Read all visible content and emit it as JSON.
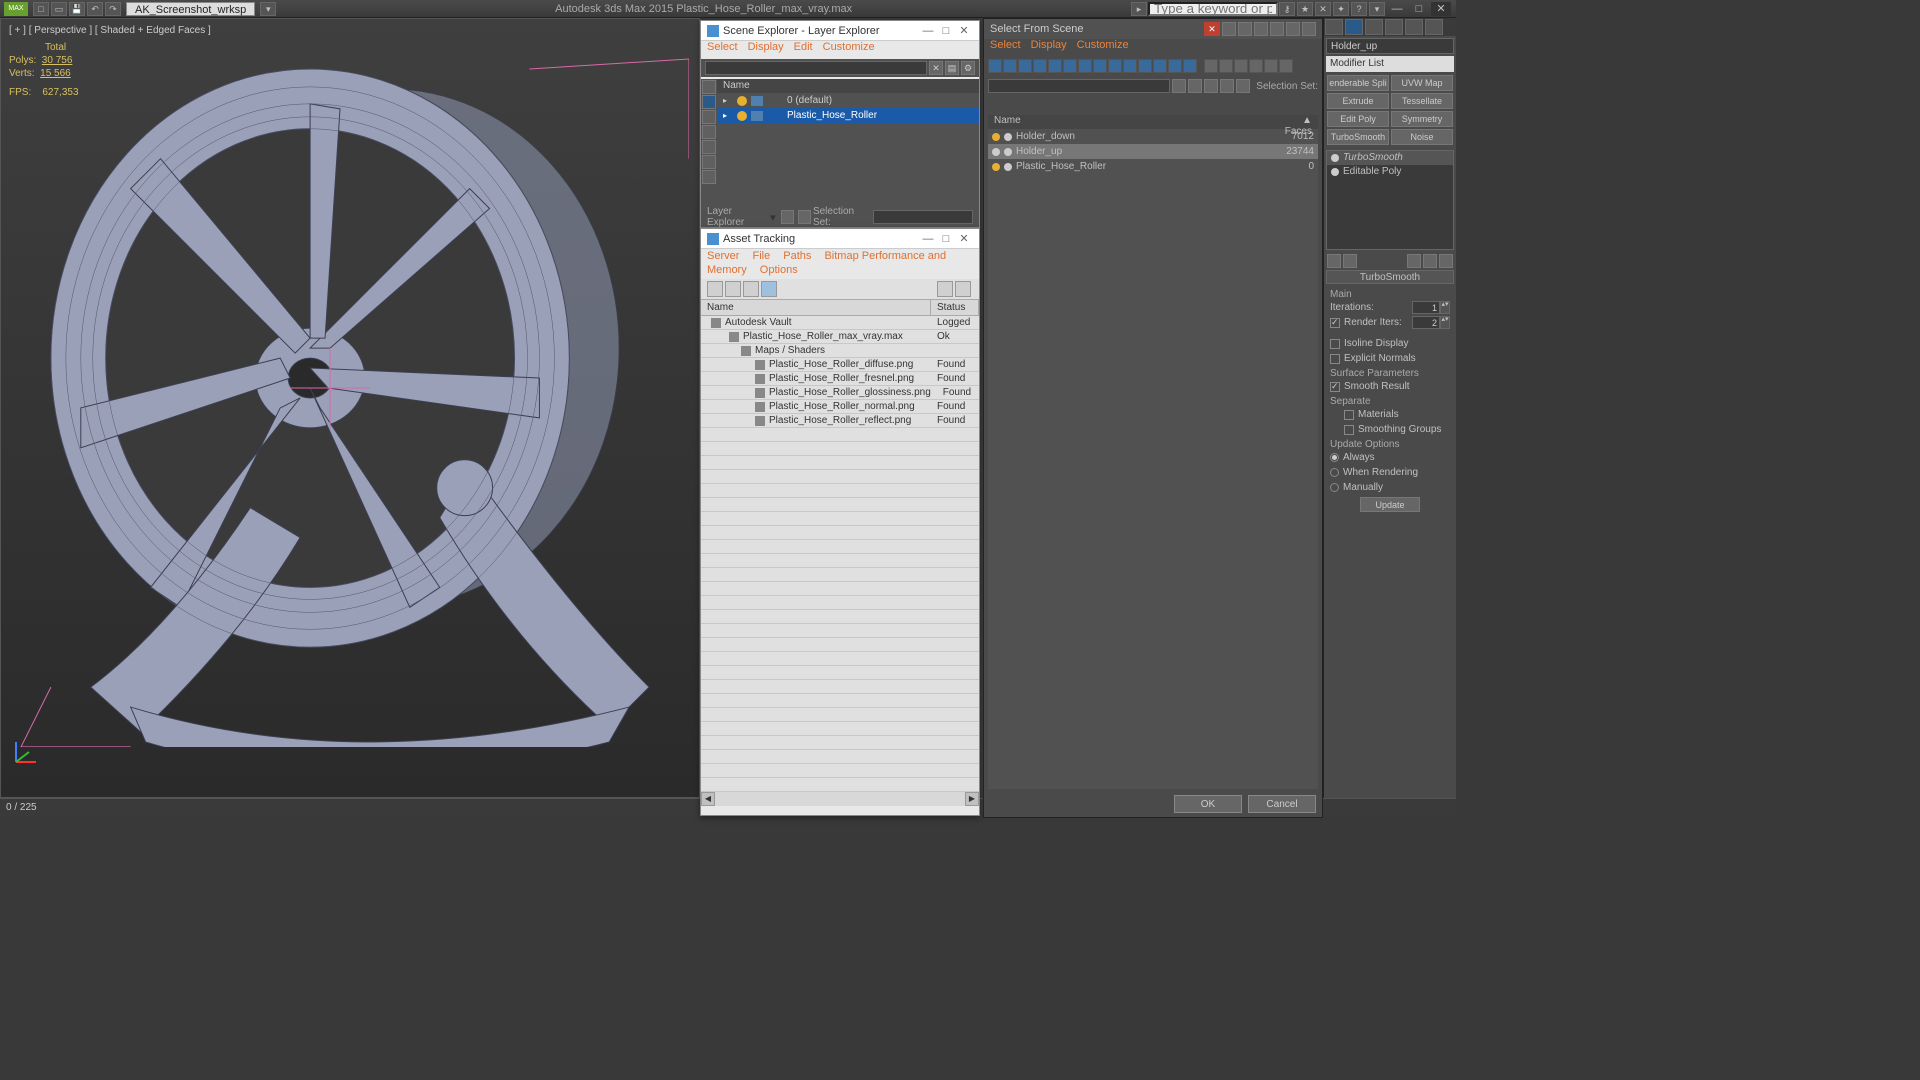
{
  "app": {
    "title": "Autodesk 3ds Max  2015    Plastic_Hose_Roller_max_vray.max",
    "workspace": "AK_Screenshot_wrksp",
    "search_placeholder": "Type a keyword or phrase"
  },
  "viewport": {
    "label": "[ + ] [ Perspective ] [ Shaded + Edged Faces ]",
    "stats_title": "Total",
    "polys_label": "Polys:",
    "polys": "30 756",
    "verts_label": "Verts:",
    "verts": "15 566",
    "fps_label": "FPS:",
    "fps": "627,353",
    "wire_color": "#9aa0b8",
    "wire_edge": "#3c3f52",
    "helper_color": "#d86aa8"
  },
  "statusbar": {
    "frames": "0 / 225"
  },
  "scene_explorer": {
    "title": "Scene Explorer - Layer Explorer",
    "menu": [
      "Select",
      "Display",
      "Edit",
      "Customize"
    ],
    "name_col": "Name",
    "layers": [
      {
        "name": "0 (default)",
        "selected": false,
        "indent": 20
      },
      {
        "name": "Plastic_Hose_Roller",
        "selected": true,
        "indent": 20
      }
    ],
    "footer_label": "Layer Explorer",
    "selset_label": "Selection Set:"
  },
  "asset_tracking": {
    "title": "Asset Tracking",
    "menu": [
      "Server",
      "File",
      "Paths",
      "Bitmap Performance and Memory",
      "Options"
    ],
    "cols": [
      "Name",
      "Status"
    ],
    "rows": [
      {
        "name": "Autodesk Vault",
        "status": "Logged",
        "indent": 10
      },
      {
        "name": "Plastic_Hose_Roller_max_vray.max",
        "status": "Ok",
        "indent": 28
      },
      {
        "name": "Maps / Shaders",
        "status": "",
        "indent": 40
      },
      {
        "name": "Plastic_Hose_Roller_diffuse.png",
        "status": "Found",
        "indent": 54
      },
      {
        "name": "Plastic_Hose_Roller_fresnel.png",
        "status": "Found",
        "indent": 54
      },
      {
        "name": "Plastic_Hose_Roller_glossiness.png",
        "status": "Found",
        "indent": 54
      },
      {
        "name": "Plastic_Hose_Roller_normal.png",
        "status": "Found",
        "indent": 54
      },
      {
        "name": "Plastic_Hose_Roller_reflect.png",
        "status": "Found",
        "indent": 54
      }
    ],
    "blank_rows": 26
  },
  "select_from_scene": {
    "title": "Select From Scene",
    "menu": [
      "Select",
      "Display",
      "Customize"
    ],
    "cols": [
      "Name",
      "Faces"
    ],
    "rows": [
      {
        "name": "Holder_down",
        "faces": "7012",
        "selected": false
      },
      {
        "name": "Holder_up",
        "faces": "23744",
        "selected": true
      },
      {
        "name": "Plastic_Hose_Roller",
        "faces": "0",
        "selected": false
      }
    ],
    "selset_label": "Selection Set:",
    "ok": "OK",
    "cancel": "Cancel"
  },
  "command_panel": {
    "object_name": "Holder_up",
    "modifier_list": "Modifier List",
    "mod_buttons": [
      "enderable Spli",
      "UVW Map",
      "Extrude",
      "Tessellate",
      "Edit Poly",
      "Symmetry",
      "TurboSmooth",
      "Noise"
    ],
    "stack": [
      {
        "name": "TurboSmooth",
        "selected": true
      },
      {
        "name": "Editable Poly",
        "selected": false
      }
    ],
    "turbosmooth": {
      "title": "TurboSmooth",
      "main": "Main",
      "iterations_label": "Iterations:",
      "iterations": "1",
      "render_iters_label": "Render Iters:",
      "render_iters": "2",
      "render_iters_on": true,
      "isoline": "Isoline Display",
      "explicit": "Explicit Normals",
      "surface_params": "Surface Parameters",
      "smooth_result": "Smooth Result",
      "smooth_result_on": true,
      "separate": "Separate",
      "materials": "Materials",
      "smoothing_groups": "Smoothing Groups",
      "update_options": "Update Options",
      "always": "Always",
      "when_rendering": "When Rendering",
      "manually": "Manually",
      "update": "Update"
    }
  },
  "colors": {
    "bg": "#393939",
    "panel": "#4a4a4a",
    "dark": "#3a3a3a",
    "accent_blue": "#1a5aa8",
    "accent_orange": "#e07030",
    "bulb": "#e8b030"
  }
}
